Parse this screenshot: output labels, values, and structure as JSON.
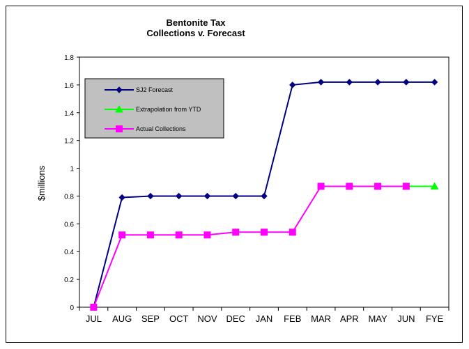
{
  "chart_data": {
    "type": "line",
    "title_line1": "Bentonite Tax",
    "title_line2": "Collections v. Forecast",
    "xlabel": "",
    "ylabel": "$millions",
    "ylim": [
      0,
      1.8
    ],
    "yticks": [
      "0",
      "0.2",
      "0.4",
      "0.6",
      "0.8",
      "1",
      "1.2",
      "1.4",
      "1.6",
      "1.8"
    ],
    "categories": [
      "JUL",
      "AUG",
      "SEP",
      "OCT",
      "NOV",
      "DEC",
      "JAN",
      "FEB",
      "MAR",
      "APR",
      "MAY",
      "JUN",
      "FYE"
    ],
    "grid": false,
    "legend_position": "top-left",
    "series": [
      {
        "name": "SJ2 Forecast",
        "color": "#000080",
        "marker": "diamond",
        "values": [
          0,
          0.79,
          0.8,
          0.8,
          0.8,
          0.8,
          0.8,
          1.6,
          1.62,
          1.62,
          1.62,
          1.62,
          1.62
        ]
      },
      {
        "name": "Extrapolation from YTD",
        "color": "#00ff00",
        "marker": "triangle",
        "values": [
          null,
          null,
          null,
          null,
          null,
          null,
          null,
          null,
          null,
          null,
          null,
          0.87,
          0.87
        ]
      },
      {
        "name": "Actual Collections",
        "color": "#ff00ff",
        "marker": "square",
        "values": [
          0,
          0.52,
          0.52,
          0.52,
          0.52,
          0.54,
          0.54,
          0.54,
          0.87,
          0.87,
          0.87,
          0.87,
          null
        ]
      }
    ],
    "plot_background": "#ffffff",
    "legend_background": "#c0c0c0"
  }
}
